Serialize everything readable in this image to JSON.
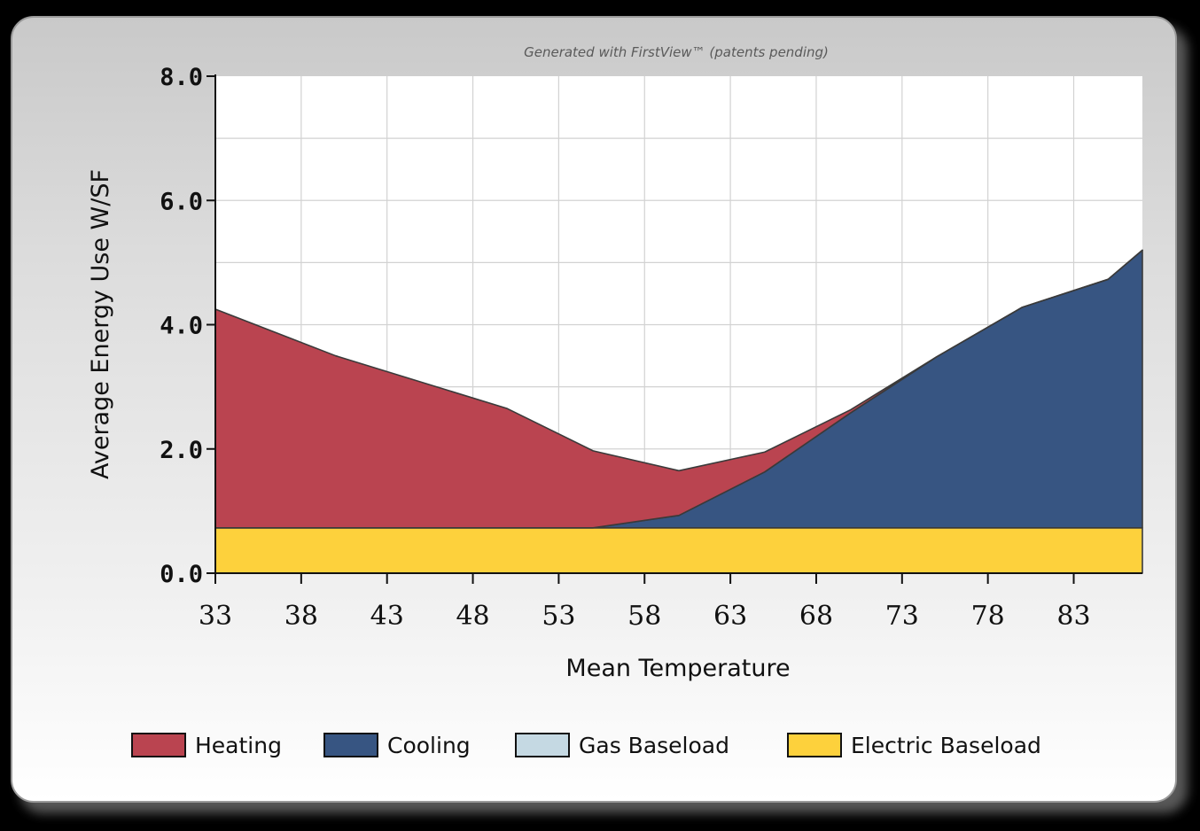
{
  "credit": "Generated with FirstView™ (patents pending)",
  "chart_data": {
    "type": "area",
    "stacked": true,
    "title": "",
    "xlabel": "Mean Temperature",
    "ylabel": "Average Energy Use W/SF",
    "xlim": [
      33,
      87
    ],
    "ylim": [
      0,
      8
    ],
    "x_ticks": [
      "33",
      "38",
      "43",
      "48",
      "53",
      "58",
      "63",
      "68",
      "73",
      "78",
      "83"
    ],
    "y_ticks": [
      "0.0",
      "2.0",
      "4.0",
      "6.0",
      "8.0"
    ],
    "grid": true,
    "legend_position": "bottom",
    "x": [
      33,
      40,
      50,
      55,
      60,
      65,
      70,
      75,
      80,
      85,
      87
    ],
    "series": [
      {
        "name": "Electric Baseload",
        "color": "#FDD13C",
        "values": [
          0.73,
          0.73,
          0.73,
          0.73,
          0.73,
          0.73,
          0.73,
          0.73,
          0.73,
          0.73,
          0.73
        ]
      },
      {
        "name": "Gas Baseload",
        "color": "#C5D9E3",
        "values": [
          0,
          0,
          0,
          0,
          0,
          0,
          0,
          0,
          0,
          0,
          0
        ]
      },
      {
        "name": "Cooling",
        "color": "#375582",
        "values": [
          0,
          0,
          0,
          0,
          0.2,
          0.9,
          1.85,
          2.75,
          3.55,
          4.0,
          4.47
        ]
      },
      {
        "name": "Heating",
        "color": "#BA4450",
        "values": [
          3.52,
          2.77,
          1.92,
          1.24,
          0.72,
          0.32,
          0.05,
          0,
          0,
          0,
          0
        ]
      }
    ],
    "legend": [
      {
        "label": "Heating",
        "color": "#BA4450"
      },
      {
        "label": "Cooling",
        "color": "#375582"
      },
      {
        "label": "Gas Baseload",
        "color": "#C5D9E3"
      },
      {
        "label": "Electric Baseload",
        "color": "#FDD13C"
      }
    ]
  }
}
